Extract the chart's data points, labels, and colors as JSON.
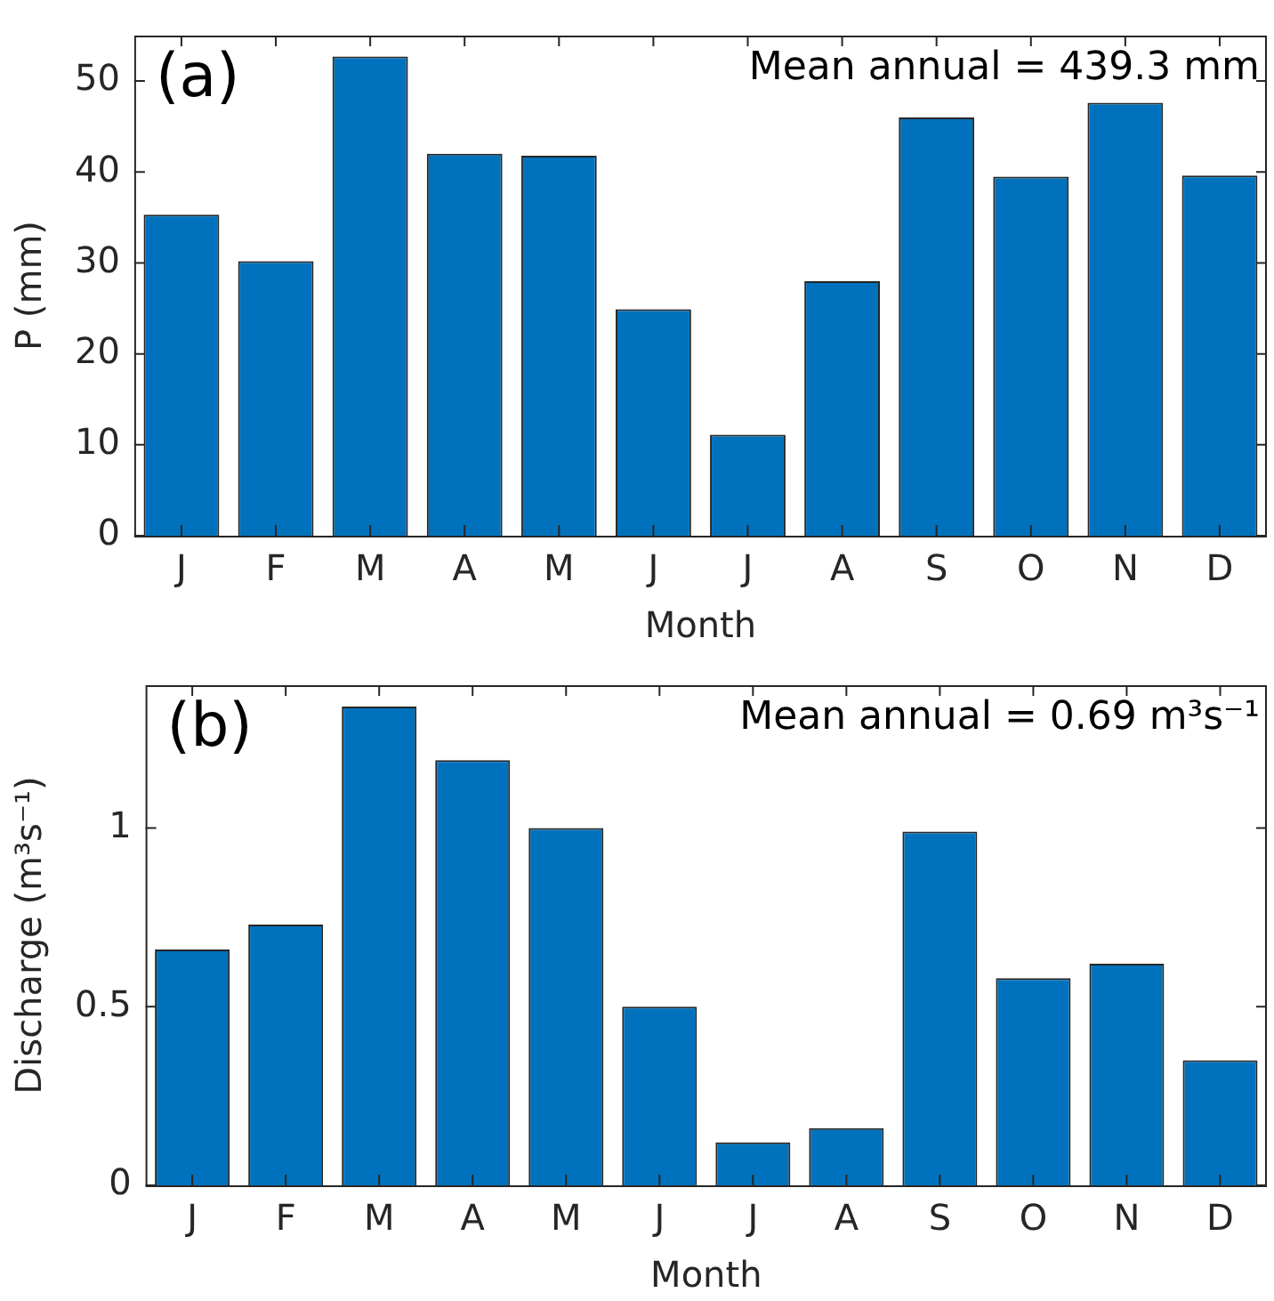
{
  "chart_data": [
    {
      "type": "bar",
      "xlabel": "Month",
      "ylabel": "P (mm)",
      "categories": [
        "J",
        "F",
        "M",
        "A",
        "M",
        "J",
        "J",
        "A",
        "S",
        "O",
        "N",
        "D"
      ],
      "values": [
        35.3,
        30.2,
        52.7,
        42.0,
        41.8,
        24.9,
        11.1,
        28.0,
        46.0,
        39.5,
        47.6,
        39.6
      ],
      "color": "#0072bd",
      "ylim": [
        0,
        55
      ],
      "yticks": [
        0,
        10,
        20,
        30,
        40,
        50
      ],
      "grid": false,
      "legend": false,
      "annotations": [
        "(a)",
        "Mean annual = 439.3 mm"
      ]
    },
    {
      "type": "bar",
      "xlabel": "Month",
      "ylabel": "Discharge (m³s⁻¹)",
      "categories": [
        "J",
        "F",
        "M",
        "A",
        "M",
        "J",
        "J",
        "A",
        "S",
        "O",
        "N",
        "D"
      ],
      "values": [
        0.66,
        0.73,
        1.34,
        1.19,
        1.0,
        0.5,
        0.12,
        0.16,
        0.99,
        0.58,
        0.62,
        0.35
      ],
      "color": "#0072bd",
      "ylim": [
        0,
        1.4
      ],
      "yticks": [
        0,
        0.5,
        1
      ],
      "grid": false,
      "legend": false,
      "annotations": [
        "(b)",
        "Mean annual = 0.69 m³s⁻¹"
      ]
    }
  ]
}
